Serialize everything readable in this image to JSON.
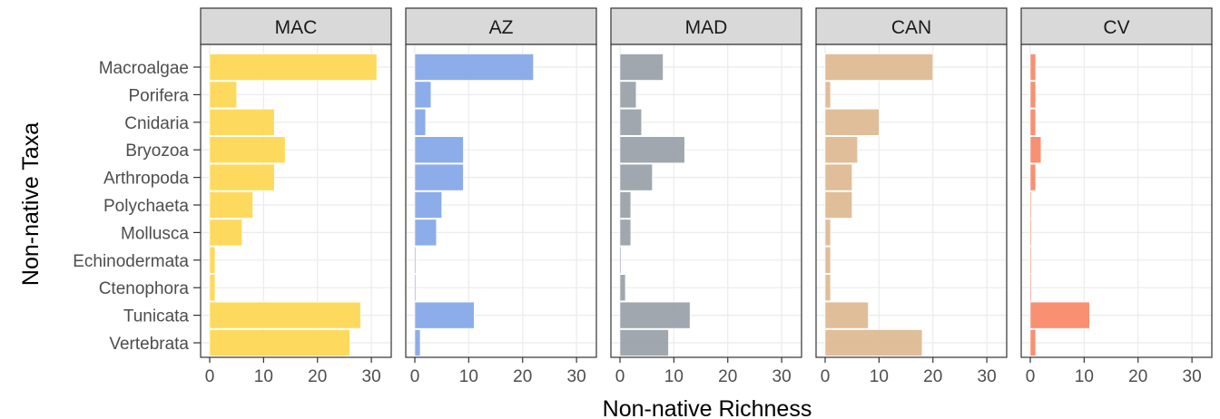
{
  "chart_data": {
    "type": "bar",
    "orientation": "horizontal",
    "facet": "panels",
    "xlabel": "Non-native Richness",
    "ylabel": "Non-native Taxa",
    "xlim": [
      0,
      32
    ],
    "xticks": [
      0,
      10,
      20,
      30
    ],
    "grid": true,
    "legend": "none",
    "categories": [
      "Macroalgae",
      "Porifera",
      "Cnidaria",
      "Bryozoa",
      "Arthropoda",
      "Polychaeta",
      "Mollusca",
      "Echinodermata",
      "Ctenophora",
      "Tunicata",
      "Vertebrata"
    ],
    "panels": [
      {
        "title": "MAC",
        "color": "#FDD855",
        "values": [
          31,
          5,
          12,
          14,
          12,
          8,
          6,
          1,
          1,
          28,
          26
        ]
      },
      {
        "title": "AZ",
        "color": "#86A9E8",
        "values": [
          22,
          3,
          2,
          9,
          9,
          5,
          4,
          0,
          0,
          11,
          1
        ]
      },
      {
        "title": "MAD",
        "color": "#9BA2AB",
        "values": [
          8,
          3,
          4,
          12,
          6,
          2,
          2,
          0,
          1,
          13,
          9
        ]
      },
      {
        "title": "CAN",
        "color": "#DDBB93",
        "values": [
          20,
          1,
          10,
          6,
          5,
          5,
          1,
          1,
          1,
          8,
          18
        ]
      },
      {
        "title": "CV",
        "color": "#F98A6A",
        "values": [
          1,
          1,
          1,
          2,
          1,
          0,
          0,
          0,
          0,
          11,
          1
        ]
      }
    ]
  }
}
